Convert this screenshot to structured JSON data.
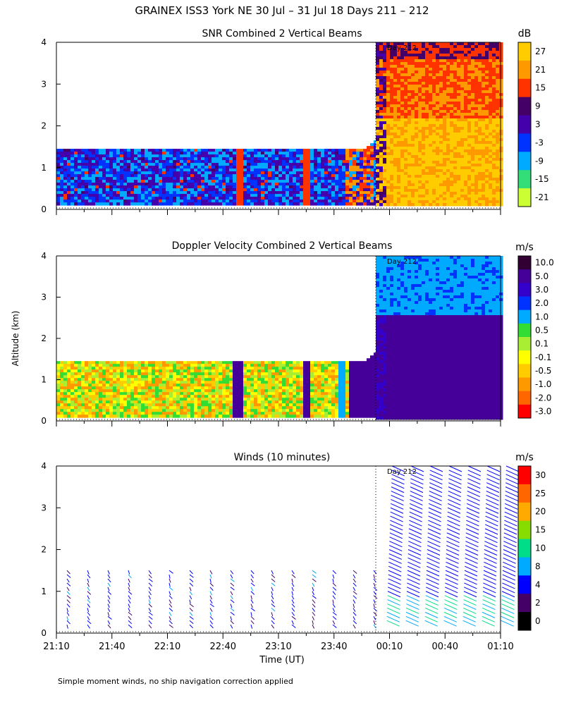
{
  "title": "GRAINEX ISS3 York NE  30 Jul – 31 Jul 18 Days 211 – 212",
  "ylabel": "Altitude (km)",
  "xlabel": "Time (UT)",
  "footnote": "Simple moment winds, no ship navigation correction applied",
  "day_marker": "Day 212",
  "chart_data": [
    {
      "type": "heatmap",
      "title": "SNR Combined 2 Vertical Beams",
      "unit": "dB",
      "ylim": [
        0,
        4
      ],
      "y_ticks": [
        "0",
        "1",
        "2",
        "3",
        "4"
      ],
      "x_ticks": [
        "21:10",
        "21:40",
        "22:10",
        "22:40",
        "23:10",
        "23:40",
        "00:10",
        "00:40",
        "01:10"
      ],
      "colorbar_ticks": [
        "27",
        "21",
        "15",
        "9",
        "3",
        "-3",
        "-9",
        "-15",
        "-21"
      ],
      "colors": [
        "#ffcc00",
        "#ff9900",
        "#ff3300",
        "#440066",
        "#4400aa",
        "#0033ff",
        "#00aaff",
        "#33dd77",
        "#ccff33"
      ],
      "regions": [
        {
          "time": "21:10–00:00",
          "max_alt_km": 1.4,
          "dominant_dB": "-9 to 3"
        },
        {
          "time": "00:00–01:10",
          "max_alt_km": 4.0,
          "dominant_dB": "15 to 27"
        }
      ]
    },
    {
      "type": "heatmap",
      "title": "Doppler Velocity Combined 2 Vertical Beams",
      "unit": "m/s",
      "ylim": [
        0,
        4
      ],
      "y_ticks": [
        "0",
        "1",
        "2",
        "3",
        "4"
      ],
      "x_ticks": [
        "21:10",
        "21:40",
        "22:10",
        "22:40",
        "23:10",
        "23:40",
        "00:10",
        "00:40",
        "01:10"
      ],
      "colorbar_ticks": [
        "10.0",
        "5.0",
        "3.0",
        "2.0",
        "1.0",
        "0.5",
        "0.1",
        "-0.1",
        "-0.5",
        "-1.0",
        "-2.0",
        "-3.0"
      ],
      "colors": [
        "#330033",
        "#440099",
        "#3300cc",
        "#0033ff",
        "#00aaff",
        "#33dd33",
        "#aaee33",
        "#ffff00",
        "#ffcc00",
        "#ff9900",
        "#ff6600",
        "#ff0000"
      ],
      "regions": [
        {
          "time": "21:10–23:55",
          "max_alt_km": 1.4,
          "dominant_ms": "-0.5 to 0.5"
        },
        {
          "time": "00:00–01:10",
          "max_alt_km": 4.0,
          "dominant_ms": "3.0 to 5.0"
        }
      ]
    },
    {
      "type": "wind_barbs",
      "title": "Winds (10 minutes)",
      "unit": "m/s",
      "ylim": [
        0,
        4
      ],
      "y_ticks": [
        "0",
        "1",
        "2",
        "3",
        "4"
      ],
      "x_ticks": [
        "21:10",
        "21:40",
        "22:10",
        "22:40",
        "23:10",
        "23:40",
        "00:10",
        "00:40",
        "01:10"
      ],
      "colorbar_ticks": [
        "30",
        "25",
        "20",
        "15",
        "10",
        "8",
        "4",
        "2",
        "0"
      ],
      "colors": [
        "#ff0000",
        "#ff6600",
        "#ffaa00",
        "#88dd00",
        "#00dd88",
        "#00aaff",
        "#0000ff",
        "#440066",
        "#000000"
      ],
      "profiles_before_day212": {
        "count": 16,
        "top_km": 1.6
      },
      "profiles_after_day212": {
        "count": 7,
        "top_km": 4.1
      }
    }
  ]
}
